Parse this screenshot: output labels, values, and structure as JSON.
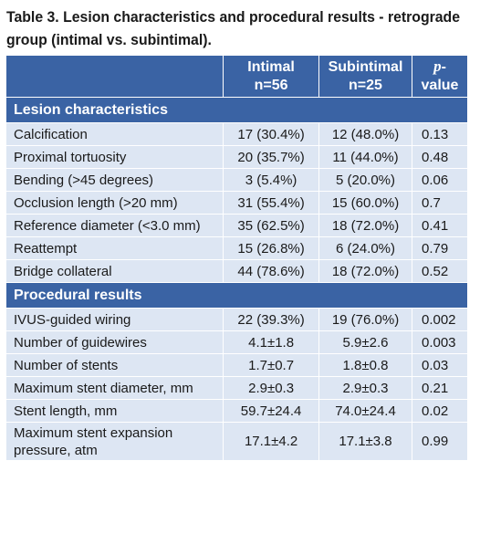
{
  "caption": "Table 3. Lesion characteristics and procedural results - retrograde group (intimal vs. subintimal).",
  "header": {
    "col1_line1": "Intimal",
    "col1_line2": "n=56",
    "col2_line1": "Subintimal",
    "col2_line2": "n=25",
    "col3_italic": "p",
    "col3_rest": "-value"
  },
  "sections": [
    {
      "title": "Lesion characteristics",
      "rows": [
        {
          "label": "Calcification",
          "intimal": "17 (30.4%)",
          "subintimal": "12 (48.0%)",
          "p": "0.13"
        },
        {
          "label": "Proximal tortuosity",
          "intimal": "20 (35.7%)",
          "subintimal": "11 (44.0%)",
          "p": "0.48"
        },
        {
          "label": "Bending (>45 degrees)",
          "intimal": "3 (5.4%)",
          "subintimal": "5 (20.0%)",
          "p": "0.06"
        },
        {
          "label": "Occlusion length (>20 mm)",
          "intimal": "31 (55.4%)",
          "subintimal": "15 (60.0%)",
          "p": "0.7"
        },
        {
          "label": "Reference diameter (<3.0 mm)",
          "intimal": "35 (62.5%)",
          "subintimal": "18 (72.0%)",
          "p": "0.41"
        },
        {
          "label": "Reattempt",
          "intimal": "15 (26.8%)",
          "subintimal": "6 (24.0%)",
          "p": "0.79"
        },
        {
          "label": "Bridge collateral",
          "intimal": "44 (78.6%)",
          "subintimal": "18 (72.0%)",
          "p": "0.52"
        }
      ]
    },
    {
      "title": "Procedural results",
      "rows": [
        {
          "label": "IVUS-guided wiring",
          "intimal": "22 (39.3%)",
          "subintimal": "19 (76.0%)",
          "p": "0.002"
        },
        {
          "label": "Number of guidewires",
          "intimal": "4.1±1.8",
          "subintimal": "5.9±2.6",
          "p": "0.003"
        },
        {
          "label": "Number of stents",
          "intimal": "1.7±0.7",
          "subintimal": "1.8±0.8",
          "p": "0.03"
        },
        {
          "label": "Maximum stent diameter, mm",
          "intimal": "2.9±0.3",
          "subintimal": "2.9±0.3",
          "p": "0.21"
        },
        {
          "label": "Stent length, mm",
          "intimal": "59.7±24.4",
          "subintimal": "74.0±24.4",
          "p": "0.02"
        },
        {
          "label": "Maximum stent expansion pressure, atm",
          "intimal": "17.1±4.2",
          "subintimal": "17.1±3.8",
          "p": "0.99"
        }
      ]
    }
  ]
}
